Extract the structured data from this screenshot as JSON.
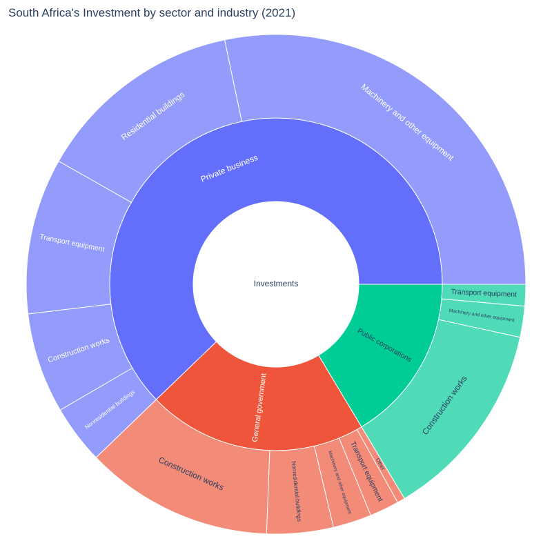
{
  "chart_data": {
    "type": "sunburst",
    "title": "South Africa's Investment by sector and industry (2021)",
    "root": "Investments",
    "sectors": [
      {
        "name": "Private business",
        "color": "#636efa",
        "child_color": "#939bfb",
        "share": 0.622,
        "children": [
          {
            "name": "Machinery and other equipment",
            "share": 0.283
          },
          {
            "name": "Residential buildings",
            "share": 0.135
          },
          {
            "name": "Transport equipment",
            "share": 0.101
          },
          {
            "name": "Construction works",
            "share": 0.065
          },
          {
            "name": "Nonresidential buildings",
            "share": 0.038
          }
        ]
      },
      {
        "name": "General government",
        "color": "#ef553b",
        "child_color": "#f38b79",
        "share": 0.214,
        "children": [
          {
            "name": "Construction works",
            "share": 0.122
          },
          {
            "name": "Nonresidential buildings",
            "share": 0.043
          },
          {
            "name": "Machinery and other equipment",
            "share": 0.025
          },
          {
            "name": "Transport equipment",
            "share": 0.019
          },
          {
            "name": "Other",
            "share": 0.005
          }
        ]
      },
      {
        "name": "Public corporations",
        "color": "#00cc96",
        "child_color": "#4fdbb7",
        "share": 0.164,
        "children": [
          {
            "name": "Construction works",
            "share": 0.13
          },
          {
            "name": "Machinery and other equipment",
            "share": 0.02
          },
          {
            "name": "Transport equipment",
            "share": 0.014
          }
        ]
      }
    ]
  }
}
